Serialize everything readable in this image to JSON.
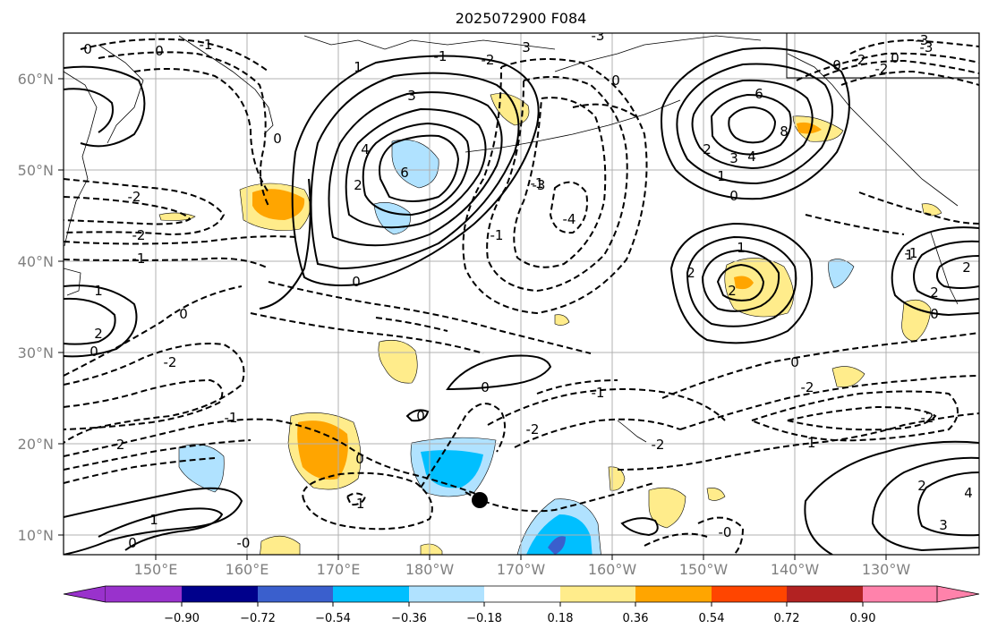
{
  "title": "2025072900 F084",
  "map": {
    "lat_labels": [
      "60°N",
      "50°N",
      "40°N",
      "30°N",
      "20°N",
      "10°N"
    ],
    "lon_labels": [
      "150°E",
      "160°E",
      "170°E",
      "180°W",
      "170°W",
      "160°W",
      "150°W",
      "140°W",
      "130°W"
    ],
    "lat_range": [
      8,
      65
    ],
    "lon_range_east": [
      140,
      240
    ],
    "gridlines": true,
    "marker": {
      "type": "storm-center",
      "lon": 186,
      "lat": 14
    }
  },
  "colorbar": {
    "orientation": "horizontal",
    "extend": "both",
    "ticks": [
      "−0.90",
      "−0.72",
      "−0.54",
      "−0.36",
      "−0.18",
      "0.18",
      "0.36",
      "0.54",
      "0.72",
      "0.90"
    ],
    "colors": [
      "#9932cc",
      "#00008b",
      "#3a5fcd",
      "#00bfff",
      "#b0e2ff",
      "#ffffff",
      "#ffec8b",
      "#ffa500",
      "#ff4500",
      "#b22222",
      "#ff82ab"
    ]
  },
  "contour_labels": [
    {
      "t": "0"
    },
    {
      "t": "0"
    },
    {
      "t": "-1"
    },
    {
      "t": "0"
    },
    {
      "t": "-1"
    },
    {
      "t": "-2"
    },
    {
      "t": "3"
    },
    {
      "t": "-3"
    },
    {
      "t": "-3"
    },
    {
      "t": "1"
    },
    {
      "t": "3"
    },
    {
      "t": "4"
    },
    {
      "t": "6"
    },
    {
      "t": "2"
    },
    {
      "t": "-1"
    },
    {
      "t": "0"
    },
    {
      "t": "-2"
    },
    {
      "t": "-2"
    },
    {
      "t": "-1"
    },
    {
      "t": "-1"
    },
    {
      "t": "1"
    },
    {
      "t": "2"
    },
    {
      "t": "0"
    },
    {
      "t": "0"
    },
    {
      "t": "-2"
    },
    {
      "t": "0"
    },
    {
      "t": "-1"
    },
    {
      "t": "-2"
    },
    {
      "t": "0"
    },
    {
      "t": "0"
    },
    {
      "t": "-2"
    },
    {
      "t": "-3"
    },
    {
      "t": "-4"
    },
    {
      "t": "0"
    },
    {
      "t": "-1"
    },
    {
      "t": "-2"
    },
    {
      "t": "-1"
    },
    {
      "t": "1"
    },
    {
      "t": "0"
    },
    {
      "t": "-0"
    },
    {
      "t": "6"
    },
    {
      "t": "8"
    },
    {
      "t": "2"
    },
    {
      "t": "3"
    },
    {
      "t": "4"
    },
    {
      "t": "1"
    },
    {
      "t": "0"
    },
    {
      "t": "0"
    },
    {
      "t": "-2"
    },
    {
      "t": "-2"
    },
    {
      "t": "1"
    },
    {
      "t": "2"
    },
    {
      "t": "2"
    },
    {
      "t": "0"
    },
    {
      "t": "-1"
    },
    {
      "t": "-2"
    },
    {
      "t": "0"
    },
    {
      "t": "-2"
    },
    {
      "t": "-1"
    },
    {
      "t": "2"
    },
    {
      "t": "4"
    },
    {
      "t": "3"
    },
    {
      "t": "-0"
    },
    {
      "t": "1"
    },
    {
      "t": "2"
    },
    {
      "t": "0"
    },
    {
      "t": "-3"
    },
    {
      "t": "2"
    }
  ]
}
